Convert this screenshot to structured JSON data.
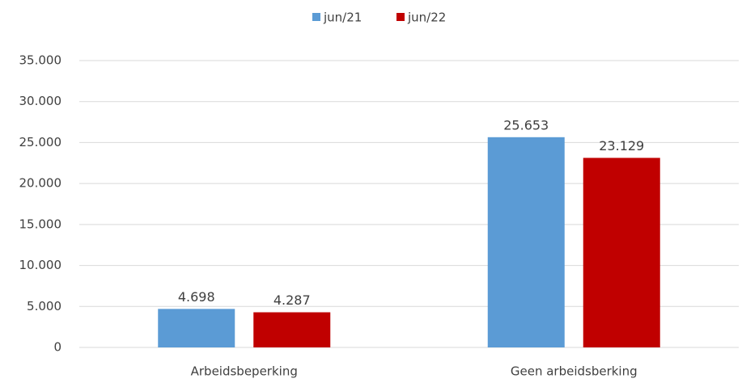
{
  "chart_data": {
    "type": "bar",
    "categories": [
      "Arbeidsbeperking",
      "Geen arbeidsberking"
    ],
    "series": [
      {
        "name": "jun/21",
        "color": "#5b9bd5",
        "values": [
          4698,
          25653
        ],
        "value_labels": [
          "4.698",
          "25.653"
        ]
      },
      {
        "name": "jun/22",
        "color": "#c00000",
        "values": [
          4287,
          23129
        ],
        "value_labels": [
          "4.287",
          "23.129"
        ]
      }
    ],
    "ylim": [
      0,
      35000
    ],
    "yticks": [
      0,
      {
        "value": 5000,
        "label": "5.000"
      },
      {
        "value": 10000,
        "label": "10.000"
      },
      {
        "value": 15000,
        "label": "15.000"
      },
      {
        "value": 20000,
        "label": "20.000"
      },
      {
        "value": 25000,
        "label": "25.000"
      },
      {
        "value": 30000,
        "label": "30.000"
      },
      {
        "value": 35000,
        "label": "35.000"
      }
    ],
    "grid": true,
    "legend": "top"
  }
}
